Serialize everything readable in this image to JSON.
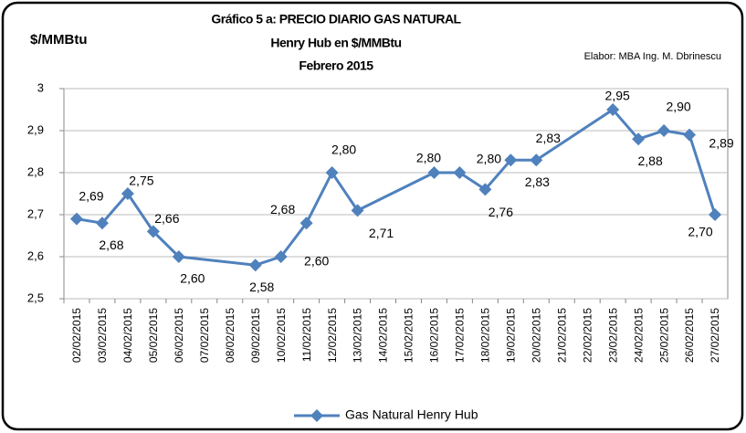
{
  "chart_data": {
    "type": "line",
    "title": [
      "Gráfico 5 a: PRECIO DIARIO GAS NATURAL",
      "Henry Hub en $/MMBtu",
      "Febrero 2015"
    ],
    "y_axis_label": "$/MMBtu",
    "annotation": "Elabor: MBA Ing. M. Dbrinescu",
    "categories": [
      "02/02/2015",
      "03/02/2015",
      "04/02/2015",
      "05/02/2015",
      "06/02/2015",
      "07/02/2015",
      "08/02/2015",
      "09/02/2015",
      "10/02/2015",
      "11/02/2015",
      "12/02/2015",
      "13/02/2015",
      "14/02/2015",
      "15/02/2015",
      "16/02/2015",
      "17/02/2015",
      "18/02/2015",
      "19/02/2015",
      "20/02/2015",
      "21/02/2015",
      "22/02/2015",
      "23/02/2015",
      "24/02/2015",
      "25/02/2015",
      "26/02/2015",
      "27/02/2015"
    ],
    "series": [
      {
        "name": "Gas Natural Henry Hub",
        "color": "#4f81bd",
        "values": [
          2.69,
          2.68,
          2.75,
          2.66,
          2.6,
          null,
          null,
          2.58,
          2.6,
          2.68,
          2.8,
          2.71,
          null,
          null,
          2.8,
          2.8,
          2.76,
          2.83,
          2.83,
          null,
          null,
          2.95,
          2.88,
          2.9,
          2.89,
          2.7
        ],
        "value_labels": [
          "2,69",
          "2,68",
          "2,75",
          "2,66",
          "2,60",
          null,
          null,
          "2,58",
          "2,60",
          "2,68",
          "2,80",
          "2,71",
          null,
          null,
          "2,80",
          "2,80",
          "2,76",
          "2,83",
          "2,83",
          null,
          null,
          "2,95",
          "2,88",
          "2,90",
          "2,89",
          "2,70"
        ]
      }
    ],
    "ylim": [
      2.5,
      3
    ],
    "yticks": [
      {
        "value": 2.5,
        "label": "2,5"
      },
      {
        "value": 2.6,
        "label": "2,6"
      },
      {
        "value": 2.7,
        "label": "2,7"
      },
      {
        "value": 2.8,
        "label": "2,8"
      },
      {
        "value": 2.9,
        "label": "2,9"
      },
      3
    ],
    "grid": true,
    "legend": "bottom"
  }
}
